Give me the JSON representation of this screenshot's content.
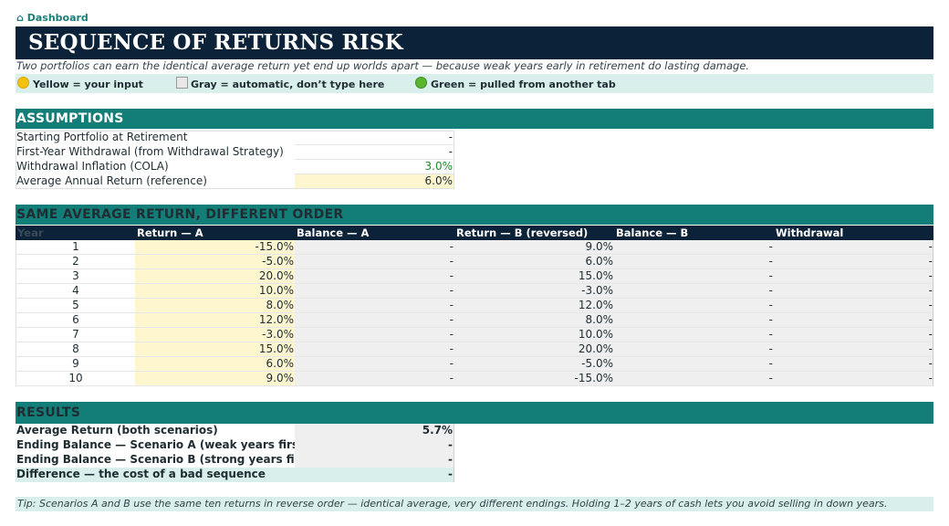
{
  "breadcrumb": {
    "icon": "home-icon",
    "label": "Dashboard"
  },
  "title": "SEQUENCE OF RETURNS RISK",
  "subtitle": "Two portfolios can earn the identical average return yet end up worlds apart — because weak years early in retirement do lasting damage.",
  "legend": {
    "yellow": "Yellow = your input",
    "gray": "Gray = automatic, don’t type here",
    "green": "Green = pulled from another tab"
  },
  "assumptions": {
    "header": "ASSUMPTIONS",
    "rows": [
      {
        "label": "Starting Portfolio at Retirement",
        "value": "-",
        "style": "plain",
        "color": "#333333"
      },
      {
        "label": "First-Year Withdrawal (from Withdrawal Strategy)",
        "value": "-",
        "style": "plain",
        "color": "#333333"
      },
      {
        "label": "Withdrawal Inflation (COLA)",
        "value": "3.0%",
        "style": "plain",
        "color": "#1e8a2a"
      },
      {
        "label": "Average Annual Return (reference)",
        "value": "6.0%",
        "style": "yellow",
        "color": "#1f2d33"
      }
    ]
  },
  "comparison": {
    "header": "SAME AVERAGE RETURN, DIFFERENT ORDER",
    "columns": [
      "Year",
      "Return — A",
      "Balance — A",
      "Return — B (reversed)",
      "Balance — B",
      "Withdrawal"
    ],
    "rows": [
      {
        "year": "1",
        "return_a": "-15.0%",
        "balance_a": "-",
        "return_b": "9.0%",
        "balance_b": "-",
        "withdrawal": "-"
      },
      {
        "year": "2",
        "return_a": "-5.0%",
        "balance_a": "-",
        "return_b": "6.0%",
        "balance_b": "-",
        "withdrawal": "-"
      },
      {
        "year": "3",
        "return_a": "20.0%",
        "balance_a": "-",
        "return_b": "15.0%",
        "balance_b": "-",
        "withdrawal": "-"
      },
      {
        "year": "4",
        "return_a": "10.0%",
        "balance_a": "-",
        "return_b": "-3.0%",
        "balance_b": "-",
        "withdrawal": "-"
      },
      {
        "year": "5",
        "return_a": "8.0%",
        "balance_a": "-",
        "return_b": "12.0%",
        "balance_b": "-",
        "withdrawal": "-"
      },
      {
        "year": "6",
        "return_a": "12.0%",
        "balance_a": "-",
        "return_b": "8.0%",
        "balance_b": "-",
        "withdrawal": "-"
      },
      {
        "year": "7",
        "return_a": "-3.0%",
        "balance_a": "-",
        "return_b": "10.0%",
        "balance_b": "-",
        "withdrawal": "-"
      },
      {
        "year": "8",
        "return_a": "15.0%",
        "balance_a": "-",
        "return_b": "20.0%",
        "balance_b": "-",
        "withdrawal": "-"
      },
      {
        "year": "9",
        "return_a": "6.0%",
        "balance_a": "-",
        "return_b": "-5.0%",
        "balance_b": "-",
        "withdrawal": "-"
      },
      {
        "year": "10",
        "return_a": "9.0%",
        "balance_a": "-",
        "return_b": "-15.0%",
        "balance_b": "-",
        "withdrawal": "-"
      }
    ]
  },
  "results": {
    "header": "RESULTS",
    "rows": [
      {
        "label": "Average Return (both scenarios)",
        "value": "5.7%",
        "style": "gray"
      },
      {
        "label": "Ending Balance — Scenario A (weak years first)",
        "value": "-",
        "style": "gray"
      },
      {
        "label": "Ending Balance — Scenario B (strong years first)",
        "value": "-",
        "style": "gray"
      },
      {
        "label": "Difference — the cost of a bad sequence",
        "value": "-",
        "style": "mint"
      }
    ]
  },
  "tip": "Tip: Scenarios A and B use the same ten returns in reverse order — identical average, very different endings. Holding 1–2 years of cash lets you avoid selling in down years.",
  "colors": {
    "navy": "#0b2239",
    "teal": "#137d78",
    "input_yellow": "#fdf6cf",
    "auto_gray": "#efefef",
    "linked_green": "#d9efec"
  }
}
